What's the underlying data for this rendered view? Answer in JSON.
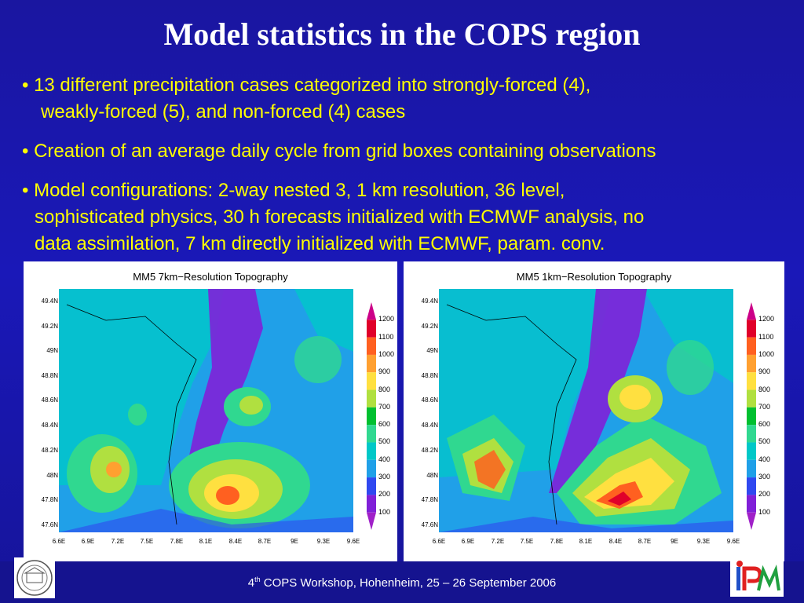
{
  "title": "Model statistics in the COPS region",
  "bullets": [
    {
      "lines": [
        "• 13 different precipitation cases categorized into strongly-forced (4),",
        "weakly-forced (5), and non-forced (4) cases"
      ]
    },
    {
      "lines": [
        "• Creation of an average daily cycle from grid boxes containing observations"
      ]
    },
    {
      "lines": [
        "• Model configurations: 2-way nested 3, 1 km resolution, 36 level,",
        "sophisticated physics, 30 h forecasts initialized with ECMWF analysis, no",
        "data assimilation, 7 km directly initialized with ECMWF, param. conv."
      ]
    }
  ],
  "maps": {
    "left": {
      "title": "MM5  7km−Resolution Topography"
    },
    "right": {
      "title": "MM5  1km−Resolution Topography"
    },
    "lat_labels": [
      "49.4N",
      "49.2N",
      "49N",
      "48.8N",
      "48.6N",
      "48.4N",
      "48.2N",
      "48N",
      "47.8N",
      "47.6N"
    ],
    "lon_labels": [
      "6.6E",
      "6.9E",
      "7.2E",
      "7.5E",
      "7.8E",
      "8.1E",
      "8.4E",
      "8.7E",
      "9E",
      "9.3E",
      "9.6E"
    ],
    "colorbar": {
      "labels": [
        "1200",
        "1100",
        "1000",
        "900",
        "800",
        "700",
        "600",
        "500",
        "400",
        "300",
        "200",
        "100"
      ],
      "colors": [
        "#cc0088",
        "#e0002a",
        "#ff6020",
        "#ffa030",
        "#ffe040",
        "#b0e040",
        "#00c030",
        "#30d890",
        "#00c8c8",
        "#20a0e8",
        "#3048f0",
        "#8020d8",
        "#a020c8"
      ]
    }
  },
  "footer": {
    "sup": "th",
    "pre": "4",
    "text": " COPS Workshop, Hohenheim, 25 – 26 September 2006"
  }
}
